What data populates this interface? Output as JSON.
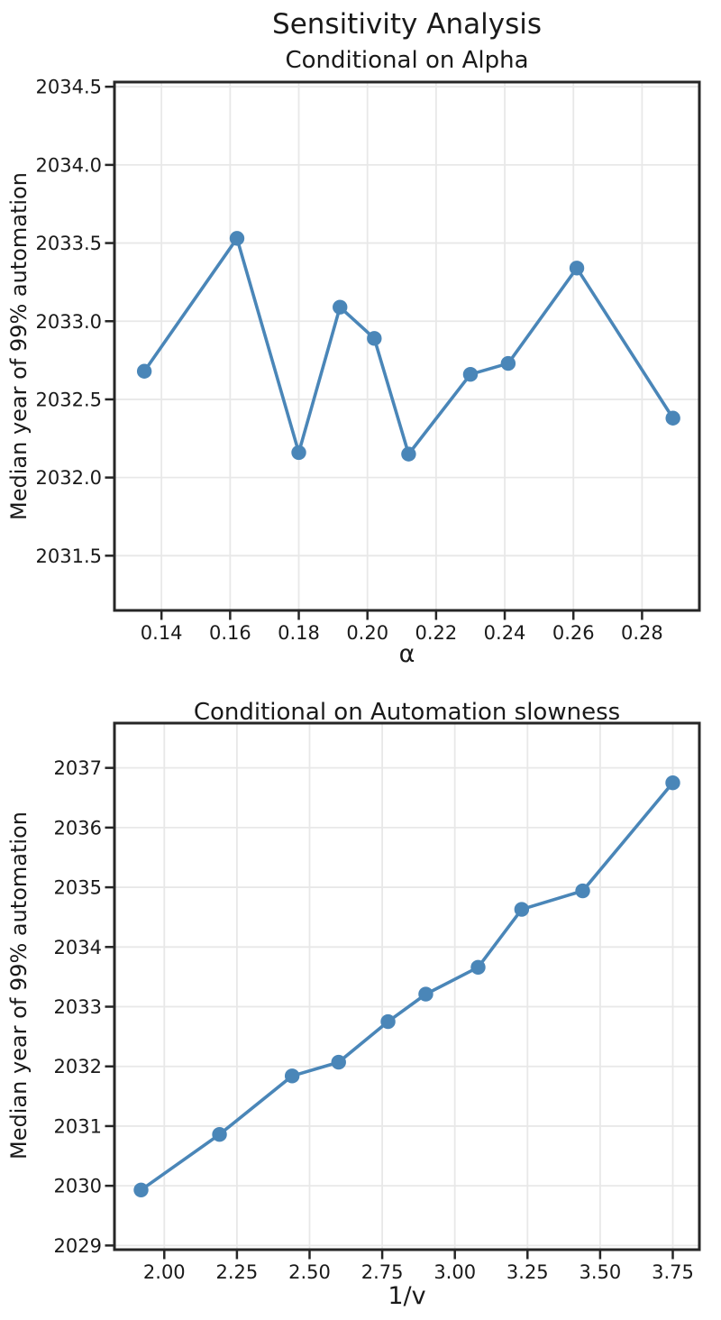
{
  "figure": {
    "title": "Sensitivity Analysis",
    "background_color": "#ffffff",
    "line_color": "#4a86b8",
    "grid_color": "#e8e8e8",
    "spine_color": "#262626",
    "text_color": "#1a1a1a"
  },
  "chart_data": [
    {
      "type": "line",
      "title": "Conditional on Alpha",
      "xlabel": "α",
      "ylabel": "Median year of 99% automation",
      "x": [
        0.135,
        0.162,
        0.18,
        0.192,
        0.202,
        0.212,
        0.23,
        0.241,
        0.261,
        0.289
      ],
      "y": [
        2032.68,
        2033.53,
        2032.16,
        2033.09,
        2032.89,
        2032.15,
        2032.66,
        2032.73,
        2033.34,
        2032.38
      ],
      "xticks": [
        0.14,
        0.16,
        0.18,
        0.2,
        0.22,
        0.24,
        0.26,
        0.28
      ],
      "xtick_labels": [
        "0.14",
        "0.16",
        "0.18",
        "0.20",
        "0.22",
        "0.24",
        "0.26",
        "0.28"
      ],
      "yticks": [
        2031.5,
        2032.0,
        2032.5,
        2033.0,
        2033.5,
        2034.0,
        2034.5
      ],
      "ytick_labels": [
        "2031.5",
        "2032.0",
        "2032.5",
        "2033.0",
        "2033.5",
        "2034.0",
        "2034.5"
      ],
      "xlim": [
        0.1263,
        0.2967
      ],
      "ylim": [
        2031.15,
        2034.53
      ],
      "grid": true,
      "legend": "none",
      "marker": "circle",
      "line_color": "#4a86b8"
    },
    {
      "type": "line",
      "title": "Conditional on Automation slowness",
      "xlabel": "1/v",
      "ylabel": "Median year of 99% automation",
      "x": [
        1.92,
        2.19,
        2.44,
        2.6,
        2.77,
        2.9,
        3.08,
        3.23,
        3.44,
        3.75
      ],
      "y": [
        2029.93,
        2030.86,
        2031.84,
        2032.07,
        2032.75,
        2033.21,
        2033.66,
        2034.63,
        2034.94,
        2036.75
      ],
      "xticks": [
        2.0,
        2.25,
        2.5,
        2.75,
        3.0,
        3.25,
        3.5,
        3.75
      ],
      "xtick_labels": [
        "2.00",
        "2.25",
        "2.50",
        "2.75",
        "3.00",
        "3.25",
        "3.50",
        "3.75"
      ],
      "yticks": [
        2029,
        2030,
        2031,
        2032,
        2033,
        2034,
        2035,
        2036,
        2037
      ],
      "ytick_labels": [
        "2029",
        "2030",
        "2031",
        "2032",
        "2033",
        "2034",
        "2035",
        "2036",
        "2037"
      ],
      "xlim": [
        1.8285,
        3.8415
      ],
      "ylim": [
        2028.93,
        2037.75
      ],
      "grid": true,
      "legend": "none",
      "marker": "circle",
      "line_color": "#4a86b8"
    }
  ]
}
